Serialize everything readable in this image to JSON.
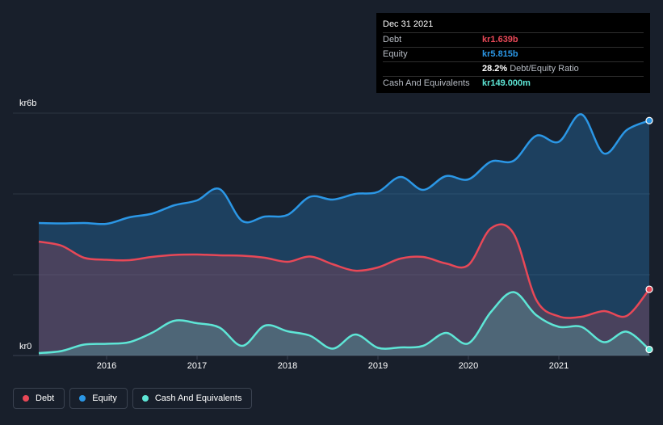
{
  "tooltip": {
    "date": "Dec 31 2021",
    "rows": [
      {
        "label": "Debt",
        "value": "kr1.639b",
        "color": "#e84857"
      },
      {
        "label": "Equity",
        "value": "kr5.815b",
        "color": "#2b97e6"
      },
      {
        "label": "",
        "value": "28.2%",
        "suffix": "Debt/Equity Ratio",
        "color": "#ffffff"
      },
      {
        "label": "Cash And Equivalents",
        "value": "kr149.000m",
        "color": "#5ee6d6"
      }
    ]
  },
  "legend": [
    {
      "label": "Debt",
      "color": "#e84857"
    },
    {
      "label": "Equity",
      "color": "#2b97e6"
    },
    {
      "label": "Cash And Equivalents",
      "color": "#5ee6d6"
    }
  ],
  "chart_data": {
    "type": "area",
    "ylabel_top": "kr6b",
    "ylabel_bottom": "kr0",
    "ylim": [
      0,
      6
    ],
    "xlim": [
      2015.25,
      2022.0
    ],
    "x_ticks": [
      "2016",
      "2017",
      "2018",
      "2019",
      "2020",
      "2021"
    ],
    "grid": true,
    "series": [
      {
        "name": "Equity",
        "color": "#2b97e6",
        "points": [
          [
            2015.25,
            3.28
          ],
          [
            2015.5,
            3.27
          ],
          [
            2015.75,
            3.28
          ],
          [
            2016.0,
            3.26
          ],
          [
            2016.25,
            3.42
          ],
          [
            2016.5,
            3.51
          ],
          [
            2016.75,
            3.72
          ],
          [
            2017.0,
            3.84
          ],
          [
            2017.25,
            4.12
          ],
          [
            2017.5,
            3.33
          ],
          [
            2017.75,
            3.44
          ],
          [
            2018.0,
            3.48
          ],
          [
            2018.25,
            3.93
          ],
          [
            2018.5,
            3.86
          ],
          [
            2018.75,
            4.0
          ],
          [
            2019.0,
            4.05
          ],
          [
            2019.25,
            4.42
          ],
          [
            2019.5,
            4.1
          ],
          [
            2019.75,
            4.44
          ],
          [
            2020.0,
            4.36
          ],
          [
            2020.25,
            4.8
          ],
          [
            2020.5,
            4.82
          ],
          [
            2020.75,
            5.44
          ],
          [
            2021.0,
            5.29
          ],
          [
            2021.25,
            5.97
          ],
          [
            2021.5,
            5.0
          ],
          [
            2021.75,
            5.58
          ],
          [
            2022.0,
            5.815
          ]
        ]
      },
      {
        "name": "Debt",
        "color": "#e84857",
        "points": [
          [
            2015.25,
            2.82
          ],
          [
            2015.5,
            2.72
          ],
          [
            2015.75,
            2.42
          ],
          [
            2016.0,
            2.37
          ],
          [
            2016.25,
            2.36
          ],
          [
            2016.5,
            2.44
          ],
          [
            2016.75,
            2.49
          ],
          [
            2017.0,
            2.5
          ],
          [
            2017.25,
            2.48
          ],
          [
            2017.5,
            2.47
          ],
          [
            2017.75,
            2.42
          ],
          [
            2018.0,
            2.32
          ],
          [
            2018.25,
            2.45
          ],
          [
            2018.5,
            2.26
          ],
          [
            2018.75,
            2.1
          ],
          [
            2019.0,
            2.18
          ],
          [
            2019.25,
            2.4
          ],
          [
            2019.5,
            2.44
          ],
          [
            2019.75,
            2.28
          ],
          [
            2020.0,
            2.24
          ],
          [
            2020.25,
            3.15
          ],
          [
            2020.5,
            3.02
          ],
          [
            2020.75,
            1.38
          ],
          [
            2021.0,
            0.97
          ],
          [
            2021.25,
            0.96
          ],
          [
            2021.5,
            1.1
          ],
          [
            2021.75,
            0.98
          ],
          [
            2022.0,
            1.639
          ]
        ]
      },
      {
        "name": "Cash And Equivalents",
        "color": "#5ee6d6",
        "points": [
          [
            2015.25,
            0.06
          ],
          [
            2015.5,
            0.11
          ],
          [
            2015.75,
            0.27
          ],
          [
            2016.0,
            0.29
          ],
          [
            2016.25,
            0.33
          ],
          [
            2016.5,
            0.56
          ],
          [
            2016.75,
            0.86
          ],
          [
            2017.0,
            0.8
          ],
          [
            2017.25,
            0.69
          ],
          [
            2017.5,
            0.24
          ],
          [
            2017.75,
            0.74
          ],
          [
            2018.0,
            0.6
          ],
          [
            2018.25,
            0.49
          ],
          [
            2018.5,
            0.17
          ],
          [
            2018.75,
            0.52
          ],
          [
            2019.0,
            0.19
          ],
          [
            2019.25,
            0.2
          ],
          [
            2019.5,
            0.24
          ],
          [
            2019.75,
            0.56
          ],
          [
            2020.0,
            0.3
          ],
          [
            2020.25,
            1.08
          ],
          [
            2020.5,
            1.57
          ],
          [
            2020.75,
            1.0
          ],
          [
            2021.0,
            0.71
          ],
          [
            2021.25,
            0.71
          ],
          [
            2021.5,
            0.33
          ],
          [
            2021.75,
            0.59
          ],
          [
            2022.0,
            0.149
          ]
        ]
      }
    ]
  }
}
